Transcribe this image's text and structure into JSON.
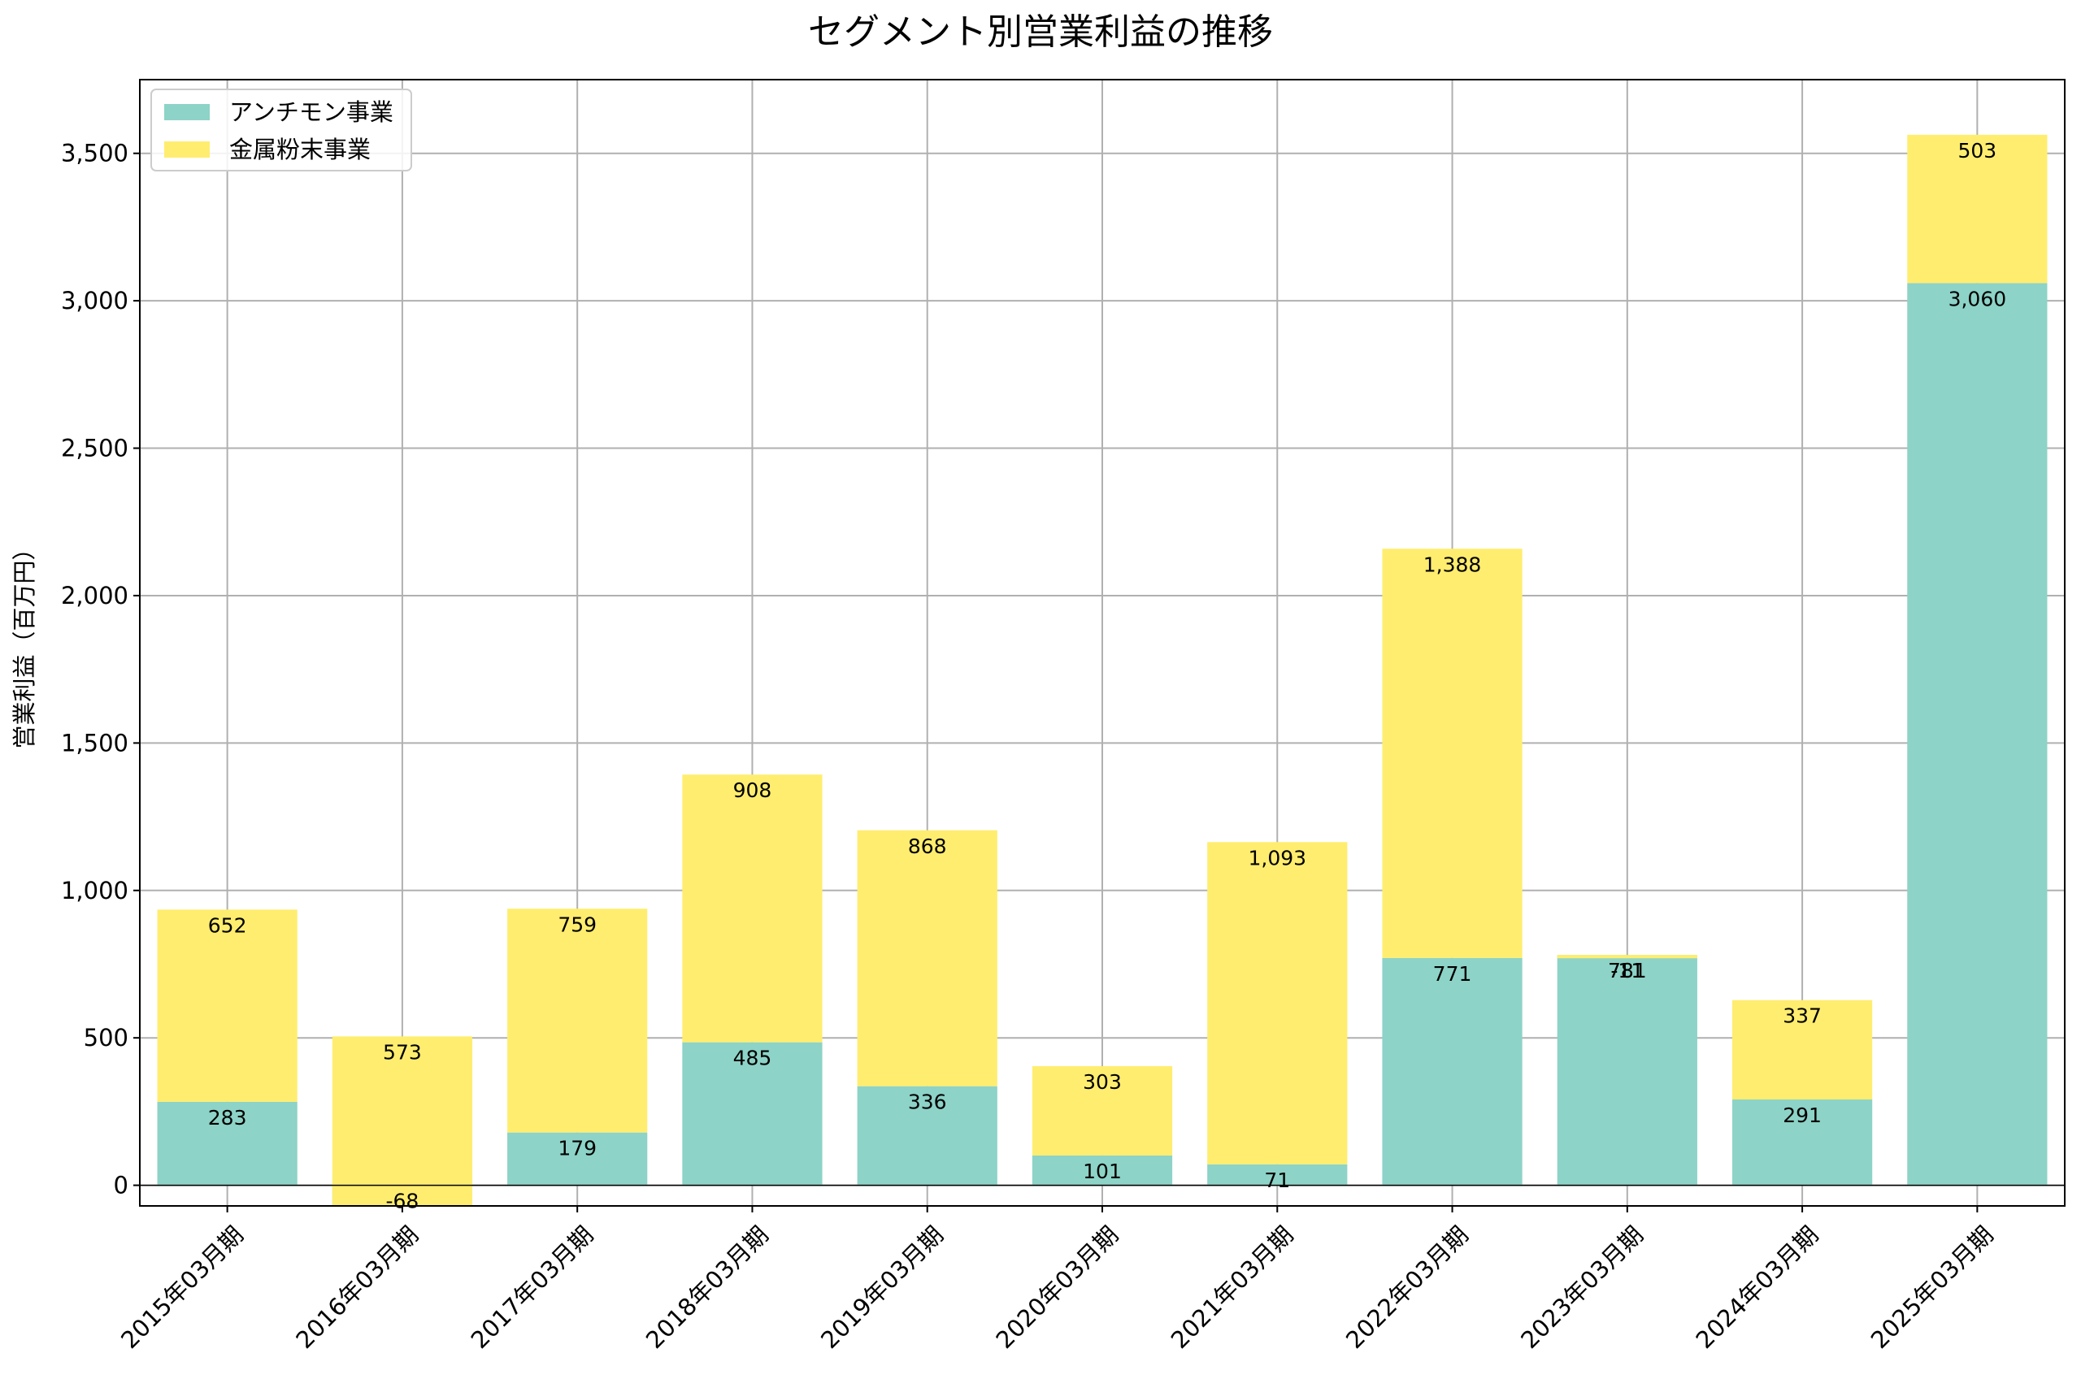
{
  "chart_data": {
    "type": "bar",
    "stacked": true,
    "title": "セグメント別営業利益の推移",
    "xlabel": "",
    "ylabel": "営業利益（百万円）",
    "ylim": [
      -70,
      3750
    ],
    "yticks": [
      0,
      500,
      1000,
      1500,
      2000,
      2500,
      3000,
      3500
    ],
    "ytick_labels": [
      "0",
      "500",
      "1,000",
      "1,500",
      "2,000",
      "2,500",
      "3,000",
      "3,500"
    ],
    "grid": true,
    "legend_position": "top-left",
    "categories": [
      "2015年03月期",
      "2016年03月期",
      "2017年03月期",
      "2018年03月期",
      "2019年03月期",
      "2020年03月期",
      "2021年03月期",
      "2022年03月期",
      "2023年03月期",
      "2024年03月期",
      "2025年03月期"
    ],
    "series": [
      {
        "name": "アンチモン事業",
        "color": "#8dd3c7",
        "values": [
          283,
          -68,
          179,
          485,
          336,
          101,
          71,
          771,
          781,
          291,
          3060
        ],
        "labels": [
          "283",
          "-68",
          "179",
          "485",
          "336",
          "101",
          "71",
          "771",
          "781",
          "291",
          "3,060"
        ]
      },
      {
        "name": "金属粉末事業",
        "color": "#ffed6f",
        "values": [
          652,
          573,
          759,
          908,
          868,
          303,
          1093,
          1388,
          -11,
          337,
          503
        ],
        "labels": [
          "652",
          "573",
          "759",
          "908",
          "868",
          "303",
          "1,093",
          "1,388",
          "-11",
          "337",
          "503"
        ]
      }
    ]
  }
}
